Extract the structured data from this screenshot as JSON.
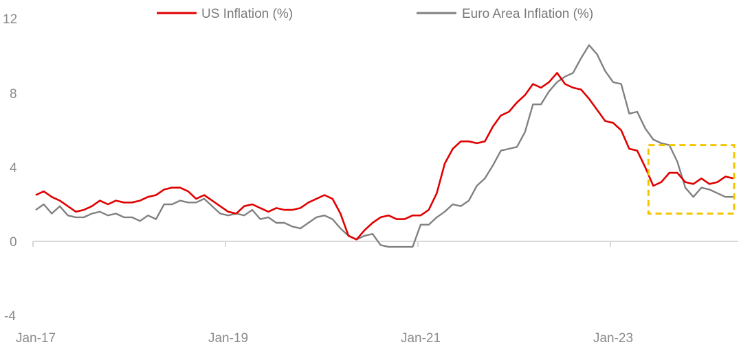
{
  "chart_data": {
    "type": "line",
    "title": "",
    "xlabel": "",
    "ylabel": "",
    "ylim": [
      -4,
      12
    ],
    "y_ticks": [
      "12",
      "8",
      "4",
      "0",
      "-4"
    ],
    "y_tick_values": [
      12,
      8,
      4,
      0,
      -4
    ],
    "x_ticks": [
      "Jan-17",
      "Jan-19",
      "Jan-21",
      "Jan-23"
    ],
    "x_tick_months": [
      0,
      24,
      48,
      72
    ],
    "x_start": "Jan-17",
    "grid": false,
    "legend_position": "top",
    "highlight_box": {
      "from": "Jun-23",
      "to": "Nov-23",
      "y_range": [
        1.5,
        5.2
      ],
      "color": "#f2c500"
    },
    "series": [
      {
        "name": "US Inflation (%)",
        "color": "#e00000",
        "values": [
          2.5,
          2.7,
          2.4,
          2.2,
          1.9,
          1.6,
          1.7,
          1.9,
          2.2,
          2.0,
          2.2,
          2.1,
          2.1,
          2.2,
          2.4,
          2.5,
          2.8,
          2.9,
          2.9,
          2.7,
          2.3,
          2.5,
          2.2,
          1.9,
          1.6,
          1.5,
          1.9,
          2.0,
          1.8,
          1.6,
          1.8,
          1.7,
          1.7,
          1.8,
          2.1,
          2.3,
          2.5,
          2.3,
          1.5,
          0.3,
          0.1,
          0.6,
          1.0,
          1.3,
          1.4,
          1.2,
          1.2,
          1.4,
          1.4,
          1.7,
          2.6,
          4.2,
          5.0,
          5.4,
          5.4,
          5.3,
          5.4,
          6.2,
          6.8,
          7.0,
          7.5,
          7.9,
          8.5,
          8.3,
          8.6,
          9.1,
          8.5,
          8.3,
          8.2,
          7.7,
          7.1,
          6.5,
          6.4,
          6.0,
          5.0,
          4.9,
          4.0,
          3.0,
          3.2,
          3.7,
          3.7,
          3.2,
          3.1,
          3.4,
          3.1,
          3.2,
          3.5,
          3.4
        ]
      },
      {
        "name": "Euro Area Inflation (%)",
        "color": "#808080",
        "values": [
          1.7,
          2.0,
          1.5,
          1.9,
          1.4,
          1.3,
          1.3,
          1.5,
          1.6,
          1.4,
          1.5,
          1.3,
          1.3,
          1.1,
          1.4,
          1.2,
          2.0,
          2.0,
          2.2,
          2.1,
          2.1,
          2.3,
          1.9,
          1.5,
          1.4,
          1.5,
          1.4,
          1.7,
          1.2,
          1.3,
          1.0,
          1.0,
          0.8,
          0.7,
          1.0,
          1.3,
          1.4,
          1.2,
          0.7,
          0.3,
          0.1,
          0.3,
          0.4,
          -0.2,
          -0.3,
          -0.3,
          -0.3,
          -0.3,
          0.9,
          0.9,
          1.3,
          1.6,
          2.0,
          1.9,
          2.2,
          3.0,
          3.4,
          4.1,
          4.9,
          5.0,
          5.1,
          5.9,
          7.4,
          7.4,
          8.1,
          8.6,
          8.9,
          9.1,
          9.9,
          10.6,
          10.1,
          9.2,
          8.6,
          8.5,
          6.9,
          7.0,
          6.1,
          5.5,
          5.3,
          5.2,
          4.3,
          2.9,
          2.4,
          2.9,
          2.8,
          2.6,
          2.4,
          2.4
        ]
      }
    ]
  }
}
